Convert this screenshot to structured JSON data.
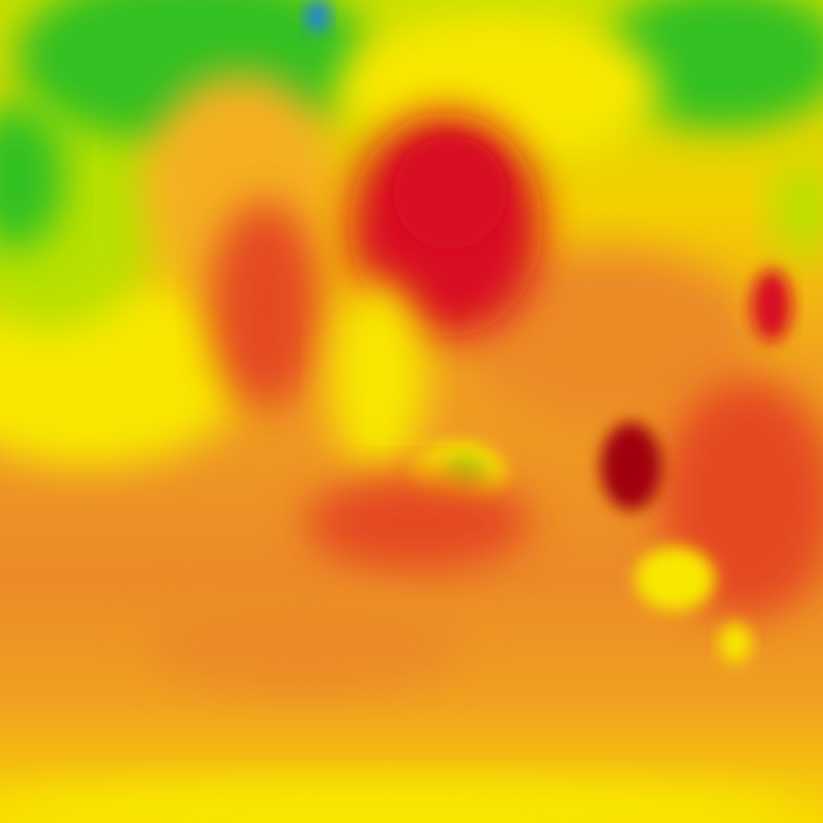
{
  "map": {
    "layer": "temperature-heatmap",
    "palette": {
      "cold_blue": "#2080e0",
      "green": "#30c020",
      "yellow_green": "#b8e000",
      "yellow": "#f8e800",
      "light_orange": "#f4b020",
      "orange": "#ec8a28",
      "red_orange": "#e44a20",
      "red": "#d81020",
      "dark_red": "#a00010"
    }
  }
}
